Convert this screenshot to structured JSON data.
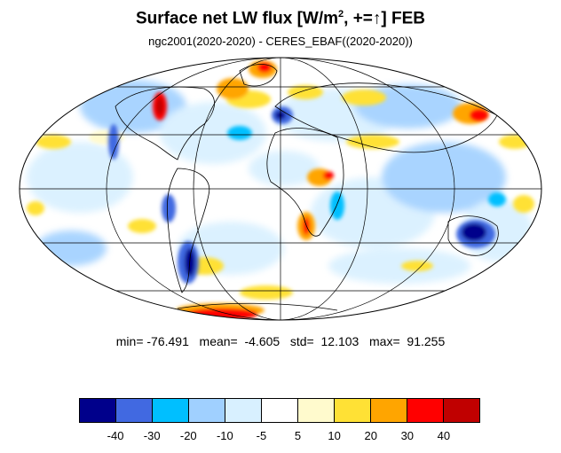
{
  "title": {
    "main": "Surface net LW flux [W/m",
    "sup": "2",
    "rest": ", +=",
    "arrow": "↑",
    "after": "]  FEB"
  },
  "subtitle": "ngc2001(2020-2020) - CERES_EBAF((2020-2020))",
  "stats": "min= -76.491   mean=  -4.605   std=  12.103   max=  91.255",
  "colorbar": {
    "colors": [
      "#00008b",
      "#4169e1",
      "#00bfff",
      "#a0d0ff",
      "#d8f0ff",
      "#ffffff",
      "#fffacd",
      "#ffe135",
      "#ffa500",
      "#ff0000",
      "#c00000"
    ],
    "labels": [
      "-40",
      "-30",
      "-20",
      "-10",
      "-5",
      "5",
      "10",
      "20",
      "30",
      "40"
    ]
  }
}
